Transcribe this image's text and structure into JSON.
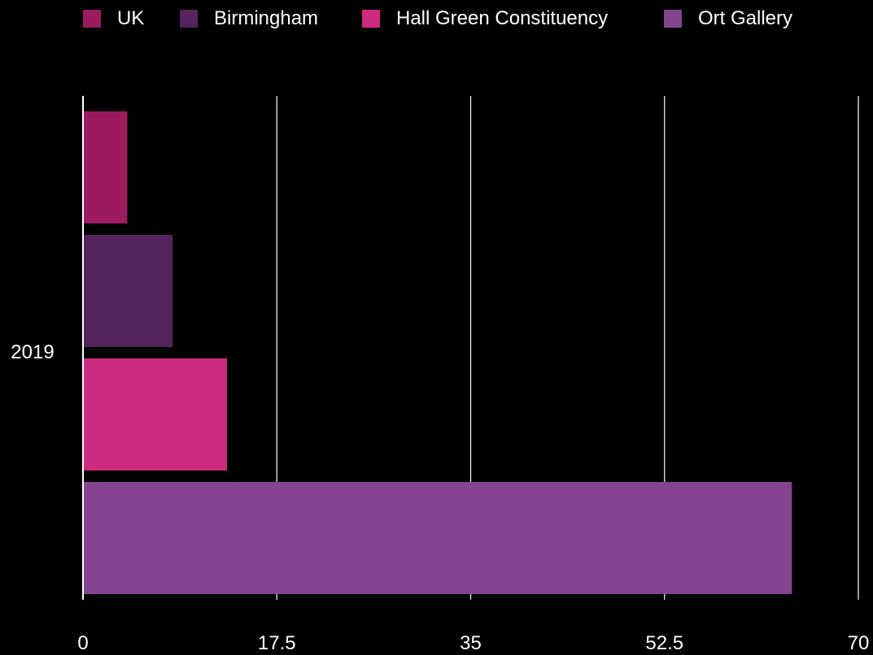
{
  "chart_data": {
    "type": "bar",
    "orientation": "horizontal",
    "categories": [
      "2019"
    ],
    "series": [
      {
        "name": "UK",
        "color": "#9b1b5e",
        "values": [
          4
        ]
      },
      {
        "name": "Birmingham",
        "color": "#55245e",
        "values": [
          8.1
        ]
      },
      {
        "name": "Hall Green Constituency",
        "color": "#cc2b7e",
        "values": [
          13
        ]
      },
      {
        "name": "Ort Gallery",
        "color": "#854492",
        "values": [
          64
        ]
      }
    ],
    "xlim": [
      0,
      70
    ],
    "xticks": [
      "0",
      "17.5",
      "35",
      "52.5",
      "70"
    ],
    "xtick_values": [
      0,
      17.5,
      35,
      52.5,
      70
    ],
    "grid": true,
    "legend_position": "top"
  }
}
